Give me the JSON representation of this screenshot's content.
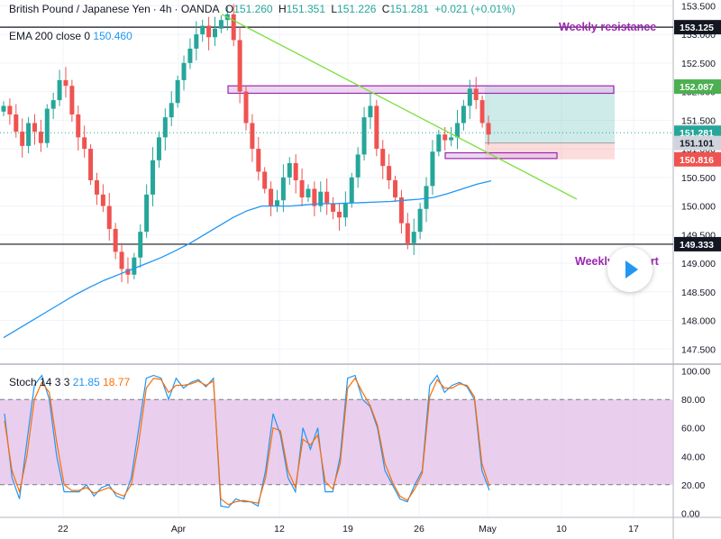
{
  "legend": {
    "pair": "British Pound / Japanese Yen",
    "timeframe": "4h",
    "source": "OANDA",
    "open_label": "O",
    "open": "151.260",
    "high_label": "H",
    "high": "151.351",
    "low_label": "L",
    "low": "151.226",
    "close_label": "C",
    "close": "151.281",
    "change": "+0.021 (+0.01%)",
    "ema_label": "EMA 200 close 0",
    "ema_value": "150.460",
    "stoch_label": "Stoch 14 3 3",
    "stoch_k": "21.85",
    "stoch_d": "18.77"
  },
  "annotations": {
    "weekly_resistance": "Weekly resistance",
    "weekly_support": "Weekly support"
  },
  "colors": {
    "up": "#26a69a",
    "down": "#ef5350",
    "ema": "#2196f3",
    "trendline": "#7cdf3c",
    "zone": "#9c27b0",
    "stoch_k": "#2196f3",
    "stoch_d": "#ff6d00",
    "stoch_band": "#e1bee7"
  },
  "chart_data": [
    {
      "type": "candlestick",
      "title": "British Pound / Japanese Yen · 4h · OANDA",
      "ylim": [
        147.3,
        153.6
      ],
      "y_ticks": [
        147.5,
        148.0,
        148.5,
        149.0,
        149.5,
        150.0,
        150.5,
        151.0,
        151.5,
        152.0,
        152.5,
        153.0,
        153.5
      ],
      "x_ticks": [
        "22",
        "Apr",
        "12",
        "19",
        "26",
        "May",
        "10",
        "17"
      ],
      "price_tags": [
        {
          "value": 153.125,
          "label": "153.125",
          "style": "dark"
        },
        {
          "value": 152.087,
          "label": "152.087",
          "style": "green"
        },
        {
          "value": 151.281,
          "label": "151.281",
          "style": "teal"
        },
        {
          "value": 151.101,
          "label": "151.101",
          "style": "gray"
        },
        {
          "value": 150.816,
          "label": "150.816",
          "style": "red"
        },
        {
          "value": 149.333,
          "label": "149.333",
          "style": "dark"
        }
      ],
      "horizontal_lines": [
        {
          "name": "weekly-resistance-line",
          "value": 153.125
        },
        {
          "name": "weekly-support-line",
          "value": 149.333
        }
      ],
      "resistance_zone": [
        151.97,
        152.1
      ],
      "support_zone": [
        150.83,
        150.93
      ],
      "trendline": {
        "start": 153.35,
        "end": 150.12
      },
      "position": {
        "entry": 151.101,
        "target": 152.087,
        "stop": 150.816
      },
      "close_series": [
        151.75,
        151.6,
        151.3,
        151.05,
        151.45,
        151.3,
        151.1,
        151.7,
        151.85,
        152.2,
        152.1,
        151.6,
        151.2,
        151.0,
        150.45,
        150.2,
        150.0,
        149.6,
        149.2,
        148.9,
        148.8,
        149.1,
        149.55,
        150.2,
        150.8,
        151.2,
        151.55,
        151.8,
        152.2,
        152.5,
        152.75,
        153.0,
        153.15,
        152.95,
        153.1,
        153.25,
        153.35,
        152.9,
        152.0,
        151.45,
        151.0,
        150.6,
        150.3,
        150.0,
        150.1,
        150.5,
        150.75,
        150.45,
        150.15,
        150.3,
        150.0,
        150.25,
        150.05,
        149.9,
        149.8,
        150.05,
        150.5,
        150.9,
        151.55,
        151.75,
        151.0,
        150.7,
        150.45,
        150.15,
        149.7,
        149.35,
        149.55,
        149.95,
        150.35,
        150.95,
        151.25,
        151.15,
        151.2,
        151.45,
        151.75,
        152.05,
        151.85,
        151.45,
        151.25
      ],
      "ema_200": [
        147.7,
        147.85,
        148.0,
        148.15,
        148.3,
        148.45,
        148.58,
        148.7,
        148.8,
        148.9,
        149.0,
        149.1,
        149.22,
        149.35,
        149.5,
        149.65,
        149.8,
        149.92,
        150.0,
        150.0,
        150.0,
        150.02,
        150.04,
        150.04,
        150.05,
        150.06,
        150.07,
        150.08,
        150.1,
        150.12,
        150.15,
        150.22,
        150.3,
        150.38,
        150.44
      ]
    },
    {
      "type": "line",
      "title": "Stoch 14 3 3",
      "ylim": [
        -3,
        103
      ],
      "y_ticks": [
        0.0,
        20.0,
        40.0,
        60.0,
        80.0,
        100.0
      ],
      "band": [
        20,
        80
      ],
      "series": [
        {
          "name": "%K",
          "values": [
            70,
            25,
            10,
            50,
            90,
            97,
            80,
            40,
            15,
            15,
            15,
            20,
            12,
            18,
            20,
            12,
            10,
            25,
            60,
            95,
            97,
            95,
            80,
            95,
            88,
            92,
            94,
            89,
            95,
            5,
            4,
            10,
            8,
            8,
            5,
            30,
            70,
            55,
            25,
            15,
            60,
            45,
            60,
            15,
            15,
            40,
            95,
            97,
            80,
            75,
            60,
            30,
            20,
            10,
            8,
            20,
            30,
            90,
            97,
            85,
            90,
            92,
            89,
            80,
            30,
            16
          ]
        },
        {
          "name": "%D",
          "values": [
            65,
            30,
            15,
            40,
            80,
            92,
            85,
            50,
            20,
            16,
            16,
            18,
            14,
            16,
            18,
            14,
            12,
            20,
            50,
            88,
            95,
            94,
            85,
            90,
            90,
            91,
            93,
            90,
            93,
            10,
            6,
            8,
            9,
            8,
            7,
            25,
            60,
            58,
            30,
            18,
            52,
            48,
            55,
            22,
            17,
            35,
            88,
            95,
            85,
            76,
            62,
            35,
            22,
            12,
            9,
            17,
            28,
            82,
            94,
            88,
            88,
            91,
            90,
            82,
            35,
            19
          ]
        }
      ]
    }
  ]
}
